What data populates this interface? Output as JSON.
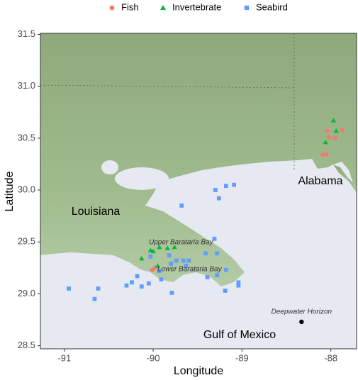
{
  "chart_data": {
    "type": "scatter",
    "x_label": "Longitude",
    "y_label": "Latitude",
    "xlim": [
      -91.27,
      -87.71
    ],
    "ylim": [
      28.47,
      31.51
    ],
    "xticks": [
      -91,
      -90,
      -89,
      -88
    ],
    "yticks": [
      {
        "value": 28.5,
        "label": "28.5"
      },
      {
        "value": 29,
        "label": "29.0"
      },
      29.5,
      {
        "value": 30,
        "label": "30.0"
      },
      30.5,
      {
        "value": 31,
        "label": "31.0"
      },
      31.5
    ],
    "legend": "top",
    "series": [
      {
        "name": "Fish",
        "color": "#F8766D",
        "marker": "circle",
        "x": [
          -88.04,
          -87.87,
          -87.95,
          -88.02,
          -88.09,
          -88.05,
          -90.01,
          -89.98
        ],
        "values": [
          30.57,
          30.58,
          30.5,
          30.51,
          30.34,
          30.34,
          29.23,
          29.25
        ]
      },
      {
        "name": "Invertebrate",
        "color": "#00BA38",
        "marker": "triangle",
        "x": [
          -87.97,
          -87.94,
          -88.06,
          -90.13,
          -90.03,
          -90.0,
          -89.93,
          -89.84,
          -89.76,
          -89.95
        ],
        "values": [
          30.67,
          30.57,
          30.46,
          29.34,
          29.42,
          29.41,
          29.45,
          29.44,
          29.45,
          29.27
        ]
      },
      {
        "name": "Seabird",
        "color": "#619CFF",
        "marker": "square",
        "x": [
          -89.3,
          -89.18,
          -89.09,
          -89.26,
          -89.68,
          -89.31,
          -90.03,
          -89.82,
          -89.8,
          -89.74,
          -89.66,
          -89.6,
          -89.63,
          -89.41,
          -89.28,
          -89.39,
          -89.28,
          -89.18,
          -89.04,
          -89.04,
          -89.19,
          -89.91,
          -90.05,
          -90.13,
          -90.18,
          -90.24,
          -90.3,
          -90.66,
          -90.62,
          -90.95,
          -89.79,
          -89.93
        ],
        "values": [
          30.0,
          30.04,
          30.05,
          29.92,
          29.85,
          29.53,
          29.36,
          29.37,
          29.29,
          29.32,
          29.32,
          29.32,
          29.27,
          29.39,
          29.39,
          29.16,
          29.18,
          29.23,
          29.11,
          29.08,
          29.03,
          29.14,
          29.1,
          29.07,
          29.17,
          29.11,
          29.08,
          28.95,
          29.05,
          29.05,
          29.01,
          29.22
        ]
      }
    ],
    "points": [
      {
        "name": "Deepwater Horizon",
        "x": -88.33,
        "y": 28.73,
        "color": "#000000"
      }
    ],
    "annotations": [
      "Louisiana",
      "Alabama",
      "Gulf of Mexico",
      "Upper Barataria Bay",
      "Lower Barataria Bay"
    ]
  }
}
